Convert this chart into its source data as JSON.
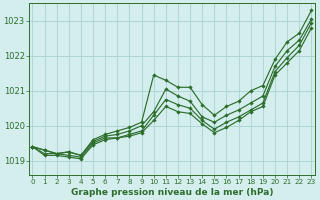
{
  "title": "Graphe pression niveau de la mer (hPa)",
  "bg_color": "#d4eeee",
  "grid_color": "#b0d4d4",
  "line_color": "#2d6e2d",
  "x_ticks": [
    0,
    1,
    2,
    3,
    4,
    5,
    6,
    7,
    8,
    9,
    10,
    11,
    12,
    13,
    14,
    15,
    16,
    17,
    18,
    19,
    20,
    21,
    22,
    23
  ],
  "y_ticks": [
    1019,
    1020,
    1021,
    1022,
    1023
  ],
  "ylim": [
    1018.6,
    1023.5
  ],
  "xlim": [
    -0.3,
    23.3
  ],
  "series": [
    [
      1019.4,
      1019.3,
      1019.2,
      1019.25,
      1019.15,
      1019.6,
      1019.75,
      1019.85,
      1019.95,
      1020.1,
      1021.45,
      1021.3,
      1021.1,
      1021.1,
      1020.6,
      1020.3,
      1020.55,
      1020.7,
      1021.0,
      1021.15,
      1021.9,
      1022.4,
      1022.65,
      1023.3
    ],
    [
      1019.4,
      1019.3,
      1019.2,
      1019.25,
      1019.15,
      1019.55,
      1019.7,
      1019.75,
      1019.85,
      1020.0,
      1020.4,
      1021.05,
      1020.85,
      1020.7,
      1020.25,
      1020.1,
      1020.3,
      1020.45,
      1020.65,
      1020.85,
      1021.7,
      1022.15,
      1022.45,
      1023.05
    ],
    [
      1019.4,
      1019.2,
      1019.2,
      1019.15,
      1019.1,
      1019.5,
      1019.65,
      1019.65,
      1019.75,
      1019.85,
      1020.3,
      1020.75,
      1020.6,
      1020.5,
      1020.15,
      1019.9,
      1020.1,
      1020.25,
      1020.45,
      1020.65,
      1021.55,
      1021.95,
      1022.3,
      1022.95
    ],
    [
      1019.4,
      1019.15,
      1019.15,
      1019.1,
      1019.05,
      1019.45,
      1019.6,
      1019.65,
      1019.7,
      1019.8,
      1020.15,
      1020.55,
      1020.4,
      1020.35,
      1020.05,
      1019.8,
      1019.95,
      1020.15,
      1020.4,
      1020.55,
      1021.45,
      1021.8,
      1022.15,
      1022.8
    ]
  ]
}
